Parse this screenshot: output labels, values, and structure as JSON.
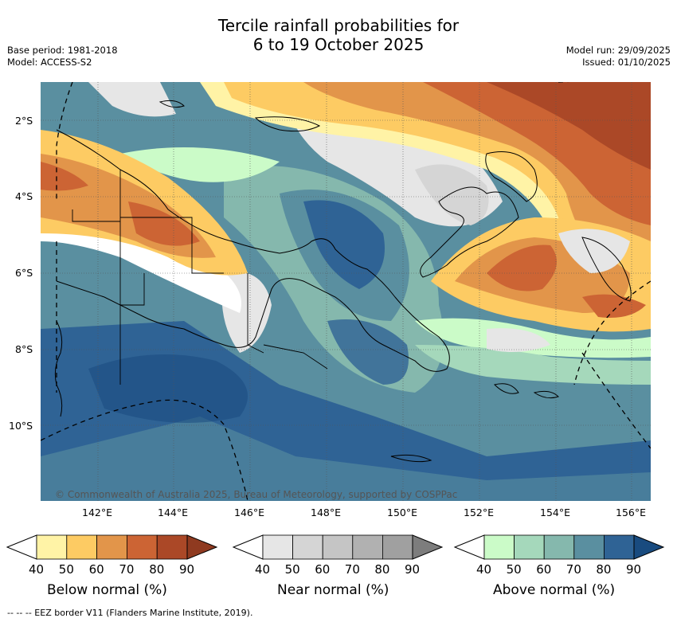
{
  "title": {
    "line1": "Tercile rainfall probabilities for",
    "line2": "6 to 19 October 2025"
  },
  "meta": {
    "base_period": "Base period: 1981-2018",
    "model": "Model: ACCESS-S2",
    "model_run": "Model run: 29/09/2025",
    "issued": "Issued: 01/10/2025"
  },
  "map": {
    "lat_labels": [
      "2°S",
      "4°S",
      "6°S",
      "8°S",
      "10°S"
    ],
    "lon_labels": [
      "142°E",
      "144°E",
      "146°E",
      "148°E",
      "150°E",
      "152°E",
      "154°E",
      "156°E"
    ],
    "copyright": "© Commonwealth of Australia 2025, Bureau of Meteorology, supported by COSPPac"
  },
  "colorbars": [
    {
      "title": "Below normal (%)",
      "ticks": [
        "40",
        "50",
        "60",
        "70",
        "80",
        "90"
      ],
      "colors": [
        "#fff3a6",
        "#fdcb63",
        "#e2954a",
        "#cc6434",
        "#ab4827",
        "#8f3a20"
      ]
    },
    {
      "title": "Near normal (%)",
      "ticks": [
        "40",
        "50",
        "60",
        "70",
        "80",
        "90"
      ],
      "colors": [
        "#e6e6e6",
        "#d5d5d5",
        "#c5c5c5",
        "#b1b1b1",
        "#a0a0a0",
        "#7d7d7d"
      ]
    },
    {
      "title": "Above normal (%)",
      "ticks": [
        "40",
        "50",
        "60",
        "70",
        "80",
        "90"
      ],
      "colors": [
        "#cbfbc8",
        "#a5d8bb",
        "#85b8ad",
        "#5a8fa0",
        "#2f6395",
        "#194b7f"
      ]
    }
  ],
  "footnote": "--  --  -- EEZ border V11 (Flanders Marine Institute, 2019)."
}
